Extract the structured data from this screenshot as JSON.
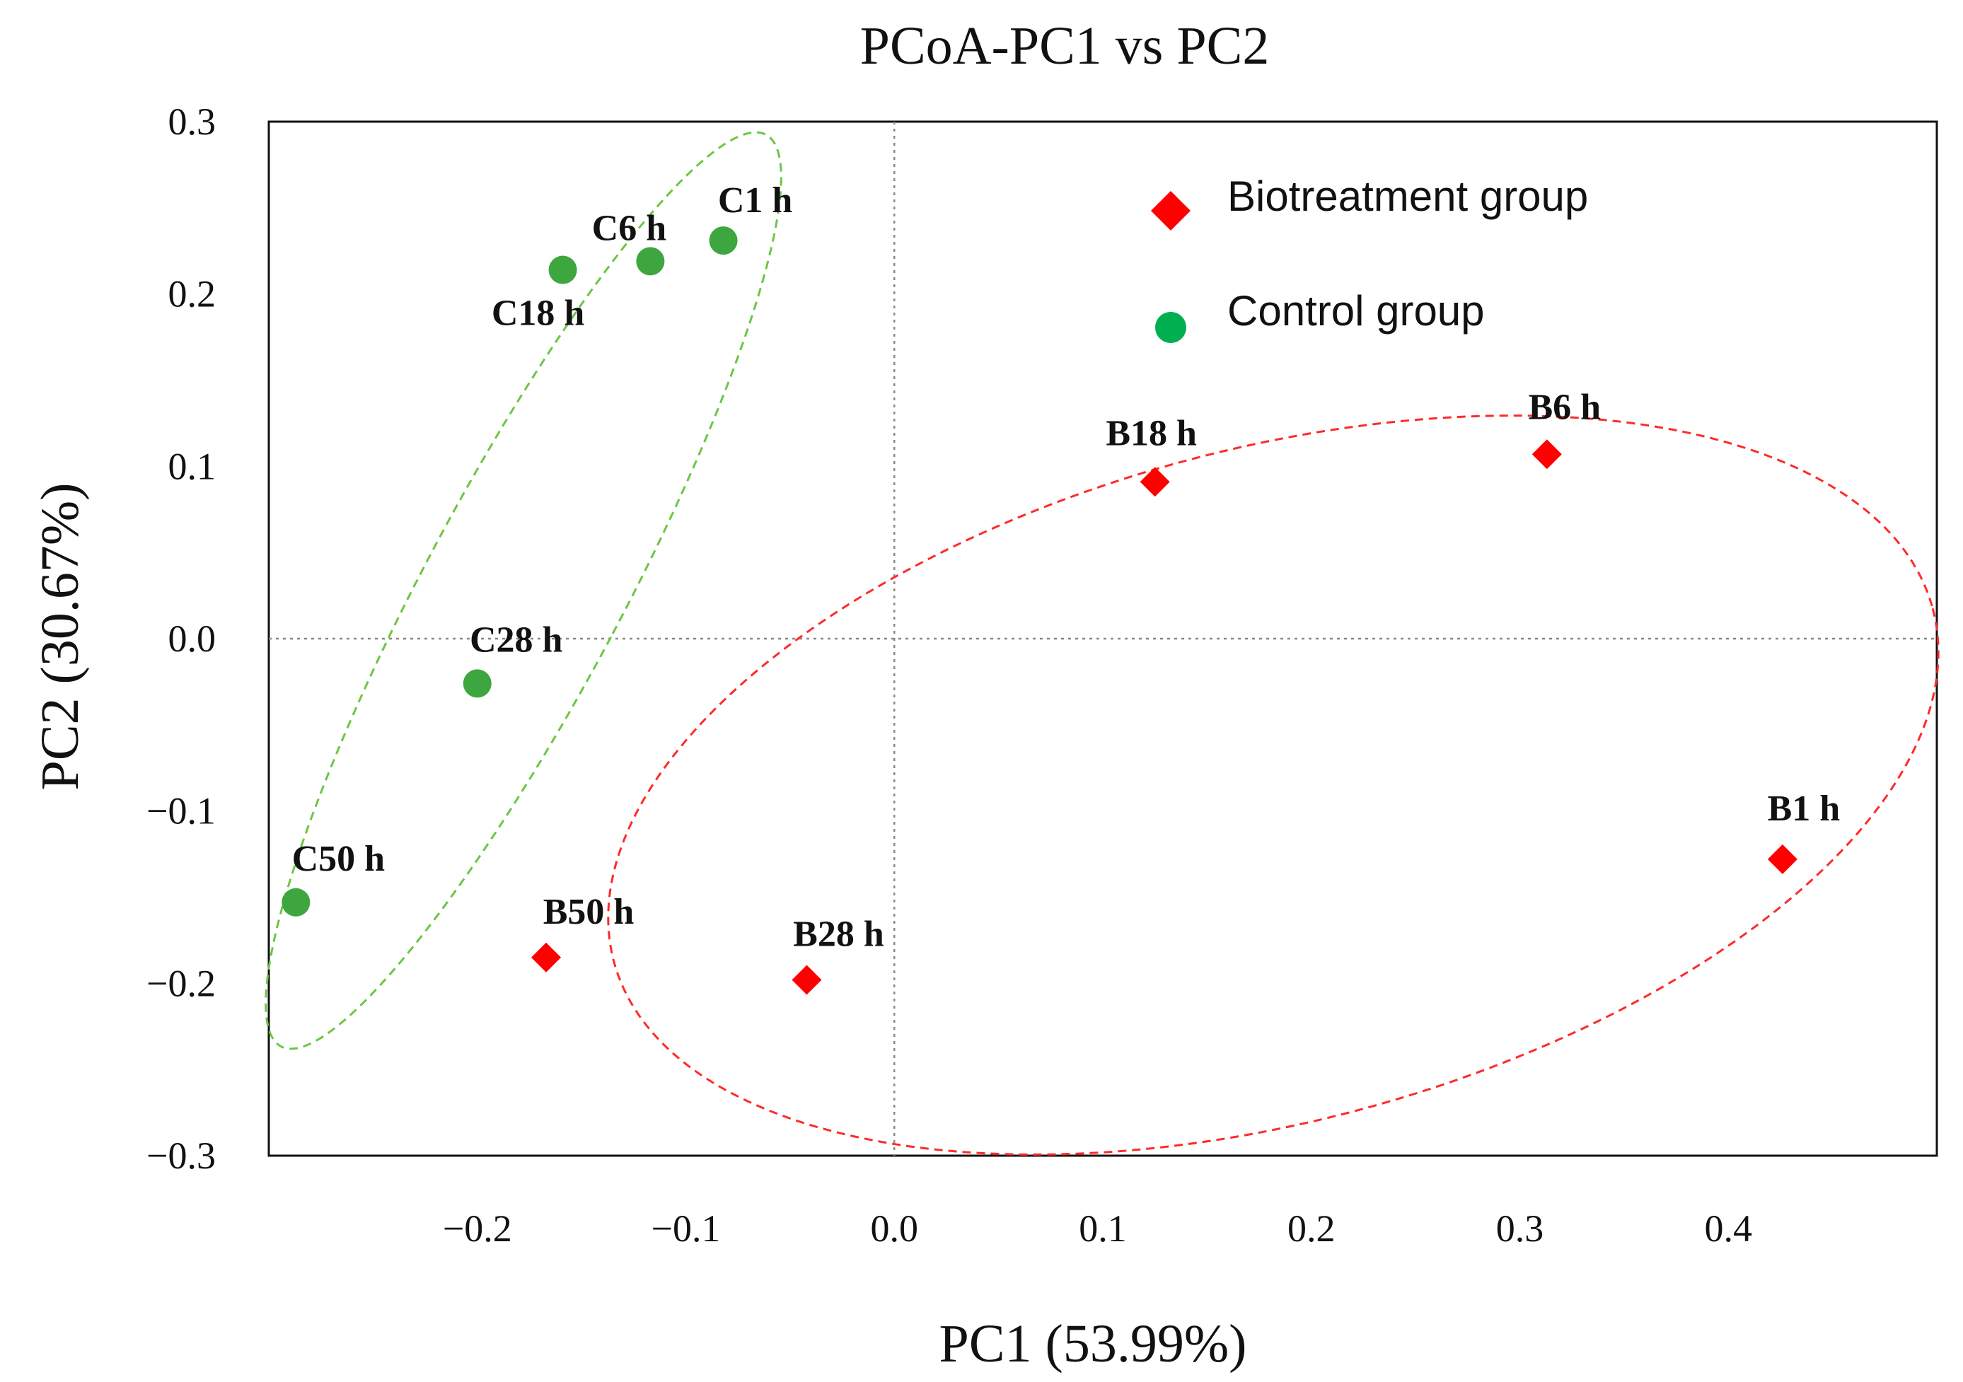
{
  "chart_data": {
    "type": "scatter",
    "title": "PCoA-PC1 vs PC2",
    "xlabel": "PC1 (53.99%)",
    "ylabel": "PC2 (30.67%)",
    "xlim": [
      -0.3,
      0.5
    ],
    "ylim": [
      -0.3,
      0.3
    ],
    "x_ticks": [
      -0.2,
      -0.1,
      0.0,
      0.1,
      0.2,
      0.3,
      0.4
    ],
    "x_tick_labels": [
      "−0.2",
      "−0.1",
      "0.0",
      "0.1",
      "0.2",
      "0.3",
      "0.4"
    ],
    "y_ticks": [
      0.3,
      0.2,
      0.1,
      0.0,
      -0.1,
      -0.2,
      -0.3
    ],
    "y_tick_labels": [
      "0.3",
      "0.2",
      "0.1",
      "0.0",
      "−0.1",
      "−0.2",
      "−0.3"
    ],
    "reference_lines": {
      "x": 0.0,
      "y": 0.0
    },
    "legend_position": "top-right",
    "series": [
      {
        "name": "Biotreatment group",
        "marker": "diamond",
        "color": "#ff0000",
        "points": [
          {
            "label": "B1 h",
            "x": 0.426,
            "y": -0.128
          },
          {
            "label": "B6 h",
            "x": 0.313,
            "y": 0.107
          },
          {
            "label": "B18 h",
            "x": 0.125,
            "y": 0.091
          },
          {
            "label": "B28 h",
            "x": -0.042,
            "y": -0.198
          },
          {
            "label": "B50 h",
            "x": -0.167,
            "y": -0.185
          }
        ]
      },
      {
        "name": "Control group",
        "marker": "circle",
        "color": "#3ea63e",
        "legend_color": "#00b050",
        "points": [
          {
            "label": "C1 h",
            "x": -0.082,
            "y": 0.231
          },
          {
            "label": "C6 h",
            "x": -0.117,
            "y": 0.219
          },
          {
            "label": "C18 h",
            "x": -0.159,
            "y": 0.214
          },
          {
            "label": "C28 h",
            "x": -0.2,
            "y": -0.026
          },
          {
            "label": "C50 h",
            "x": -0.287,
            "y": -0.153
          }
        ]
      }
    ],
    "group_ellipses": [
      {
        "group": "Control group",
        "color": "#6cc644"
      },
      {
        "group": "Biotreatment group",
        "color": "#ff2a2a"
      }
    ]
  }
}
